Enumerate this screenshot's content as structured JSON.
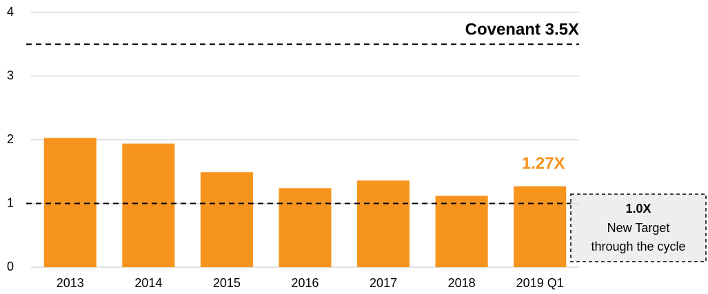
{
  "chart_data": {
    "type": "bar",
    "categories": [
      "2013",
      "2014",
      "2015",
      "2016",
      "2017",
      "2018",
      "2019 Q1"
    ],
    "values": [
      2.03,
      1.94,
      1.49,
      1.24,
      1.36,
      1.12,
      1.27
    ],
    "value_labels": [
      null,
      null,
      null,
      null,
      null,
      null,
      "1.27X"
    ],
    "color": "#f7941d",
    "ylim": [
      0,
      4
    ],
    "yticks": [
      0,
      1,
      2,
      3,
      4
    ],
    "grid": true,
    "reference_lines": [
      {
        "value": 3.5,
        "label": "Covenant 3.5X"
      },
      {
        "value": 1,
        "label": "1.0X",
        "note": [
          "New Target",
          "through the cycle"
        ]
      }
    ]
  }
}
